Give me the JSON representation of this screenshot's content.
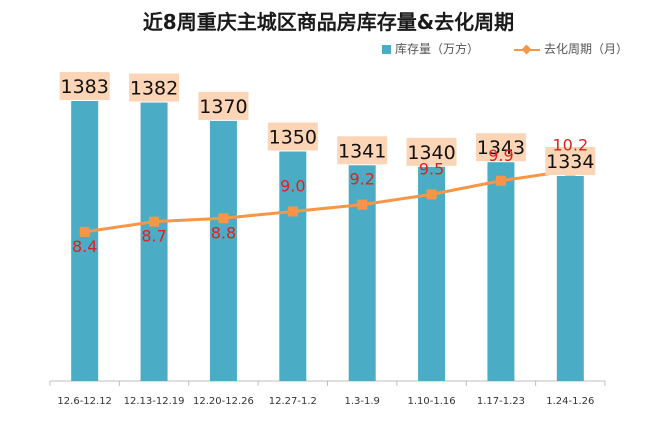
{
  "chart_data": {
    "type": "bar",
    "title": "近8周重庆主城区商品房库存量&去化周期",
    "categories": [
      "12.6-12.12",
      "12.13-12.19",
      "12.20-12.26",
      "12.27-1.2",
      "1.3-1.9",
      "1.10-1.16",
      "1.17-1.23",
      "1.24-1.26"
    ],
    "series": [
      {
        "name": "库存量（万方）",
        "type": "bar",
        "values": [
          1383,
          1382,
          1370,
          1350,
          1341,
          1340,
          1343,
          1334
        ],
        "labels": [
          "1383",
          "1382",
          "1370",
          "1350",
          "1341",
          "1340",
          "1343",
          "1334"
        ]
      },
      {
        "name": "去化周期（月）",
        "type": "line",
        "values": [
          8.4,
          8.7,
          8.8,
          9.0,
          9.2,
          9.5,
          9.9,
          10.2
        ],
        "labels": [
          "8.4",
          "8.7",
          "8.8",
          "9.0",
          "9.2",
          "9.5",
          "9.9",
          "10.2"
        ]
      }
    ],
    "bar_ylim": [
      1200,
      1400
    ],
    "line_ylim": [
      3,
      14
    ],
    "legend_position": "top-right",
    "grid": false,
    "colors": {
      "bar": "#4bacc6",
      "line": "#f79646",
      "line_label": "#e02020",
      "bar_label_bg": "#fbd5b5",
      "axis": "#bfbfbf"
    }
  }
}
